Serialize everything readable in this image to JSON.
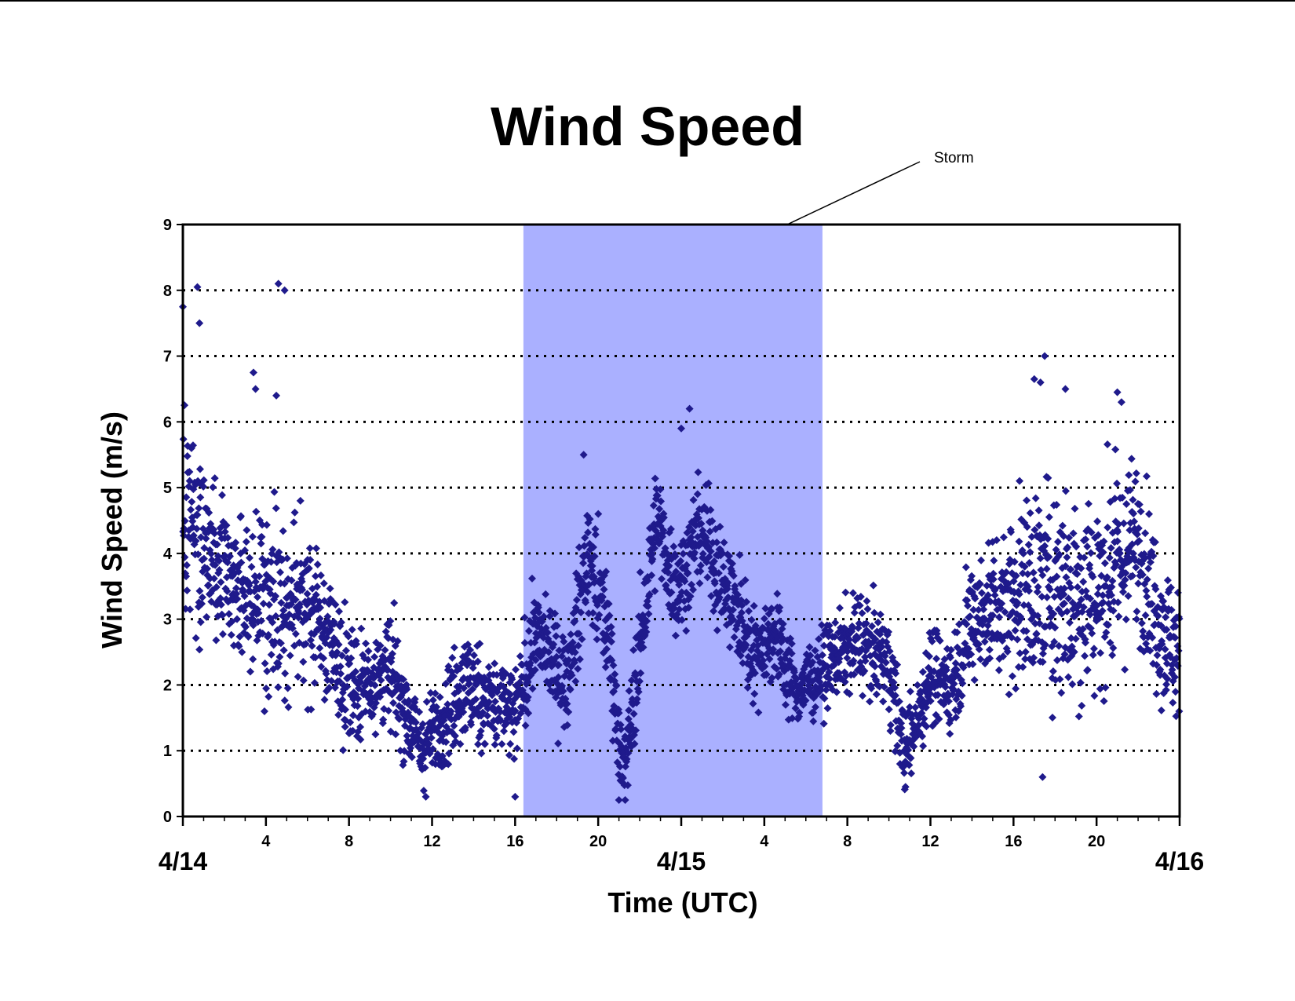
{
  "chart_data": {
    "type": "scatter",
    "title": "Wind Speed",
    "xlabel": "Time (UTC)",
    "ylabel": "Wind Speed (m/s)",
    "x_unit": "hours (UTC), from 4/14 00:00 to 4/16 00:00",
    "xlim": [
      0,
      48
    ],
    "ylim": [
      0,
      9
    ],
    "y_ticks": [
      "0",
      "1",
      "2",
      "3",
      "4",
      "5",
      "6",
      "7",
      "8",
      "9"
    ],
    "x_hour_ticks": [
      {
        "hour": 4,
        "label": "4"
      },
      {
        "hour": 8,
        "label": "8"
      },
      {
        "hour": 12,
        "label": "12"
      },
      {
        "hour": 16,
        "label": "16"
      },
      {
        "hour": 20,
        "label": "20"
      },
      {
        "hour": 28,
        "label": "4"
      },
      {
        "hour": 32,
        "label": "8"
      },
      {
        "hour": 36,
        "label": "12"
      },
      {
        "hour": 40,
        "label": "16"
      },
      {
        "hour": 44,
        "label": "20"
      }
    ],
    "x_day_labels": [
      {
        "hour": 0,
        "label": "4/14"
      },
      {
        "hour": 24,
        "label": "4/15"
      },
      {
        "hour": 48,
        "label": "4/16"
      }
    ],
    "grid": "horizontal dotted",
    "marker": "diamond",
    "marker_color": "#1f1a8c",
    "shaded_region": {
      "x_start": 16.4,
      "x_end": 30.8,
      "color": "#aab0ff",
      "label": "Storm"
    },
    "trend_anchors": [
      {
        "x": 0.0,
        "y": 4.6,
        "spread": 1.0
      },
      {
        "x": 1.0,
        "y": 4.0,
        "spread": 0.9
      },
      {
        "x": 2.5,
        "y": 3.5,
        "spread": 0.9
      },
      {
        "x": 4.5,
        "y": 3.3,
        "spread": 0.9
      },
      {
        "x": 6.5,
        "y": 3.0,
        "spread": 0.7
      },
      {
        "x": 8.0,
        "y": 2.0,
        "spread": 0.6
      },
      {
        "x": 10.0,
        "y": 2.2,
        "spread": 0.6
      },
      {
        "x": 11.5,
        "y": 1.0,
        "spread": 0.4
      },
      {
        "x": 13.5,
        "y": 2.0,
        "spread": 0.6
      },
      {
        "x": 16.0,
        "y": 1.5,
        "spread": 0.5
      },
      {
        "x": 17.0,
        "y": 2.8,
        "spread": 0.5
      },
      {
        "x": 18.5,
        "y": 2.0,
        "spread": 0.5
      },
      {
        "x": 19.5,
        "y": 4.0,
        "spread": 0.6
      },
      {
        "x": 20.5,
        "y": 2.8,
        "spread": 0.6
      },
      {
        "x": 21.2,
        "y": 0.6,
        "spread": 0.4
      },
      {
        "x": 22.0,
        "y": 2.5,
        "spread": 0.6
      },
      {
        "x": 22.8,
        "y": 4.5,
        "spread": 0.6
      },
      {
        "x": 23.8,
        "y": 3.4,
        "spread": 0.5
      },
      {
        "x": 25.0,
        "y": 4.4,
        "spread": 0.6
      },
      {
        "x": 26.0,
        "y": 3.6,
        "spread": 0.6
      },
      {
        "x": 27.5,
        "y": 2.5,
        "spread": 0.5
      },
      {
        "x": 28.5,
        "y": 2.8,
        "spread": 0.5
      },
      {
        "x": 29.5,
        "y": 1.9,
        "spread": 0.4
      },
      {
        "x": 31.0,
        "y": 2.3,
        "spread": 0.4
      },
      {
        "x": 32.5,
        "y": 2.7,
        "spread": 0.5
      },
      {
        "x": 34.0,
        "y": 2.3,
        "spread": 0.5
      },
      {
        "x": 34.8,
        "y": 0.9,
        "spread": 0.4
      },
      {
        "x": 36.0,
        "y": 2.2,
        "spread": 0.5
      },
      {
        "x": 37.0,
        "y": 2.0,
        "spread": 0.5
      },
      {
        "x": 38.0,
        "y": 3.0,
        "spread": 0.6
      },
      {
        "x": 40.0,
        "y": 3.4,
        "spread": 0.9
      },
      {
        "x": 42.0,
        "y": 3.5,
        "spread": 1.2
      },
      {
        "x": 44.0,
        "y": 3.4,
        "spread": 1.1
      },
      {
        "x": 46.0,
        "y": 4.2,
        "spread": 0.9
      },
      {
        "x": 47.0,
        "y": 3.0,
        "spread": 0.8
      },
      {
        "x": 48.0,
        "y": 2.4,
        "spread": 0.7
      }
    ],
    "points_per_hour": 62,
    "notable_points": [
      {
        "x": 0.0,
        "y": 7.75
      },
      {
        "x": 0.7,
        "y": 8.05
      },
      {
        "x": 0.8,
        "y": 7.5
      },
      {
        "x": 4.6,
        "y": 8.1
      },
      {
        "x": 4.9,
        "y": 8.0
      },
      {
        "x": 3.4,
        "y": 6.75
      },
      {
        "x": 3.5,
        "y": 6.5
      },
      {
        "x": 4.5,
        "y": 6.4
      },
      {
        "x": 24.4,
        "y": 6.2
      },
      {
        "x": 24.0,
        "y": 5.9
      },
      {
        "x": 19.3,
        "y": 5.5
      },
      {
        "x": 41.5,
        "y": 7.0
      },
      {
        "x": 41.0,
        "y": 6.65
      },
      {
        "x": 41.3,
        "y": 6.6
      },
      {
        "x": 42.5,
        "y": 6.5
      },
      {
        "x": 45.0,
        "y": 6.45
      },
      {
        "x": 45.2,
        "y": 6.3
      },
      {
        "x": 21.0,
        "y": 0.25
      },
      {
        "x": 21.3,
        "y": 0.25
      },
      {
        "x": 11.7,
        "y": 0.3
      },
      {
        "x": 16.0,
        "y": 0.3
      },
      {
        "x": 34.8,
        "y": 0.45
      },
      {
        "x": 41.4,
        "y": 0.6
      }
    ]
  }
}
